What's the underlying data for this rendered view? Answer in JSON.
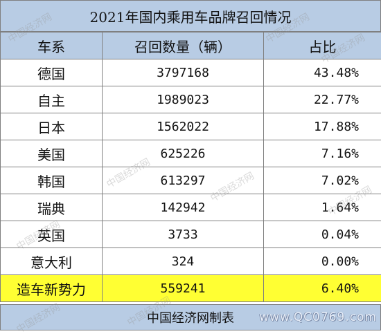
{
  "title": "2021年国内乘用车品牌召回情况",
  "columns": [
    "车系",
    "召回数量（辆）",
    "占比"
  ],
  "rows": [
    {
      "name": "德国",
      "count": "3797168",
      "share": "43.48%"
    },
    {
      "name": "自主",
      "count": "1989023",
      "share": "22.77%"
    },
    {
      "name": "日本",
      "count": "1562022",
      "share": "17.88%"
    },
    {
      "name": "美国",
      "count": "625226",
      "share": "7.16%"
    },
    {
      "name": "韩国",
      "count": "613297",
      "share": "7.02%"
    },
    {
      "name": "瑞典",
      "count": "142942",
      "share": "1.64%"
    },
    {
      "name": "英国",
      "count": "3733",
      "share": "0.04%"
    },
    {
      "name": "意大利",
      "count": "324",
      "share": "0.00%"
    },
    {
      "name": "造车新势力",
      "count": "559241",
      "share": "6.40%"
    }
  ],
  "footer": "中国经济网制表",
  "site_mark": "www.QC0769.com",
  "watermark_text": "中国经济网",
  "colors": {
    "header_bg": "#b8cce4",
    "highlight_bg": "#ffff33",
    "border": "#7f7f7f"
  }
}
